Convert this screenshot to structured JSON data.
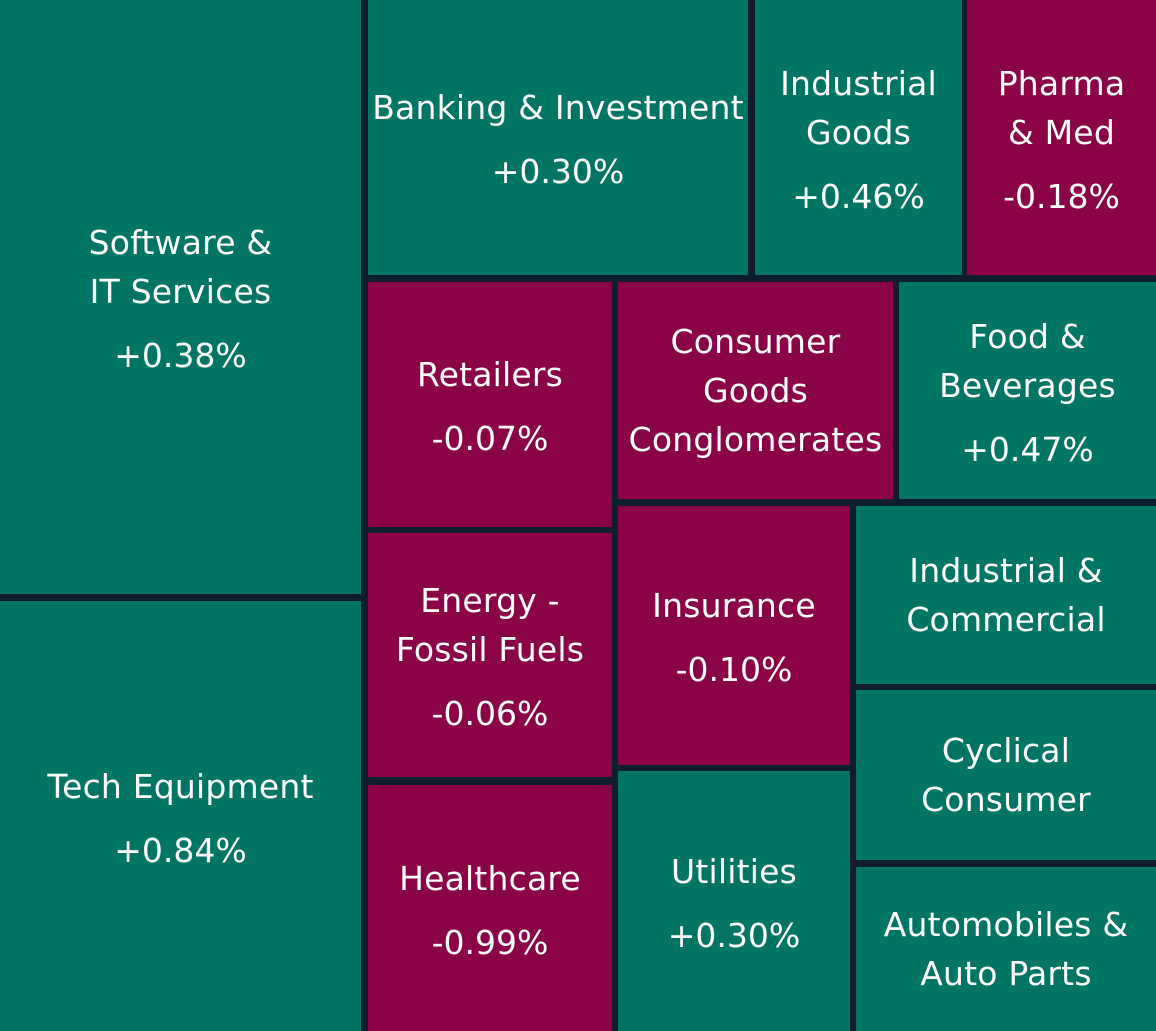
{
  "chart_data": {
    "type": "treemap",
    "title": "",
    "colors": {
      "positive": "#007563",
      "negative": "#8a0346",
      "border": "#0f1e2e"
    },
    "items": [
      {
        "name": "Software &\nIT Services",
        "change": "+0.38%"
      },
      {
        "name": "Tech Equipment",
        "change": "+0.84%"
      },
      {
        "name": "Banking & Investment",
        "change": "+0.30%"
      },
      {
        "name": "Industrial\nGoods",
        "change": "+0.46%"
      },
      {
        "name": "Pharma\n& Med",
        "change": "-0.18%"
      },
      {
        "name": "Retailers",
        "change": "-0.07%"
      },
      {
        "name": "Consumer\nGoods\nConglomerates",
        "change": null
      },
      {
        "name": "Food &\nBeverages",
        "change": "+0.47%"
      },
      {
        "name": "Energy -\nFossil Fuels",
        "change": "-0.06%"
      },
      {
        "name": "Insurance",
        "change": "-0.10%"
      },
      {
        "name": "Industrial &\nCommercial",
        "change": null
      },
      {
        "name": "Cyclical\nConsumer",
        "change": null
      },
      {
        "name": "Healthcare",
        "change": "-0.99%"
      },
      {
        "name": "Utilities",
        "change": "+0.30%"
      },
      {
        "name": "Automobiles &\nAuto Parts",
        "change": null
      }
    ]
  }
}
